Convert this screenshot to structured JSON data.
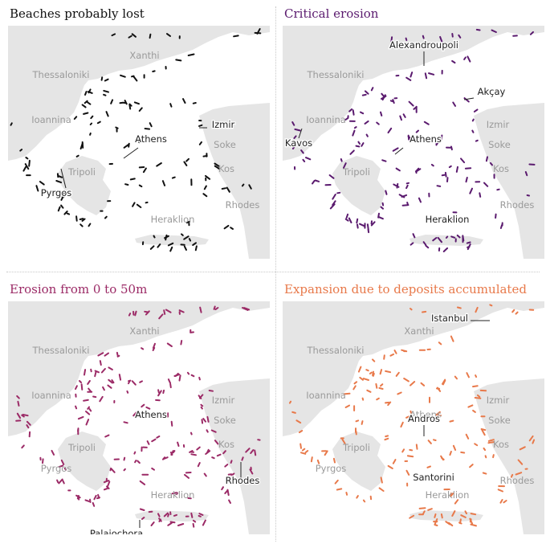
{
  "colors": {
    "sea": "#ffffff",
    "land": "#e5e5e5",
    "city_grey": "#9a9a9a",
    "city_dark": "#222222",
    "lost": "#111111",
    "critical": "#5a1a6e",
    "moderate": "#9b2a66",
    "expansion": "#e8794a"
  },
  "panels": [
    {
      "id": "lost",
      "title": "Beaches probably lost",
      "title_color": "#111111",
      "color": "#111111",
      "grey_labels": [
        "Xanthi",
        "Thessaloniki",
        "Ioannina",
        "Tripoli",
        "Soke",
        "Kos",
        "Rhodes",
        "Heraklion"
      ],
      "dark_labels": [
        "Athens",
        "Izmir",
        "Pyrgos"
      ]
    },
    {
      "id": "critical",
      "title": "Critical erosion",
      "title_color": "#5a1a6e",
      "color": "#5a1a6e",
      "grey_labels": [
        "Thessaloniki",
        "Ioannina",
        "Izmir",
        "Tripoli",
        "Soke",
        "Kos",
        "Rhodes"
      ],
      "dark_labels": [
        "Alexandroupoli",
        "Akçay",
        "Kavos",
        "Athens",
        "Heraklion"
      ]
    },
    {
      "id": "moderate",
      "title": "Erosion from 0 to 50m",
      "title_color": "#9b2a66",
      "color": "#9b2a66",
      "grey_labels": [
        "Xanthi",
        "Thessaloniki",
        "Ioannina",
        "Izmir",
        "Soke",
        "Tripoli",
        "Kos",
        "Pyrgos",
        "Heraklion"
      ],
      "dark_labels": [
        "Athens",
        "Rhodes",
        "Palaiochora"
      ]
    },
    {
      "id": "expansion",
      "title": "Expansion due to deposits accumulated",
      "title_color": "#e8794a",
      "color": "#e8794a",
      "grey_labels": [
        "Xanthi",
        "Thessaloniki",
        "Ioannina",
        "Izmir",
        "Athens",
        "Soke",
        "Tripoli",
        "Kos",
        "Pyrgos",
        "Rhodes",
        "Heraklion"
      ],
      "dark_labels": [
        "Istanbul",
        "Andros",
        "Santorini"
      ]
    }
  ]
}
